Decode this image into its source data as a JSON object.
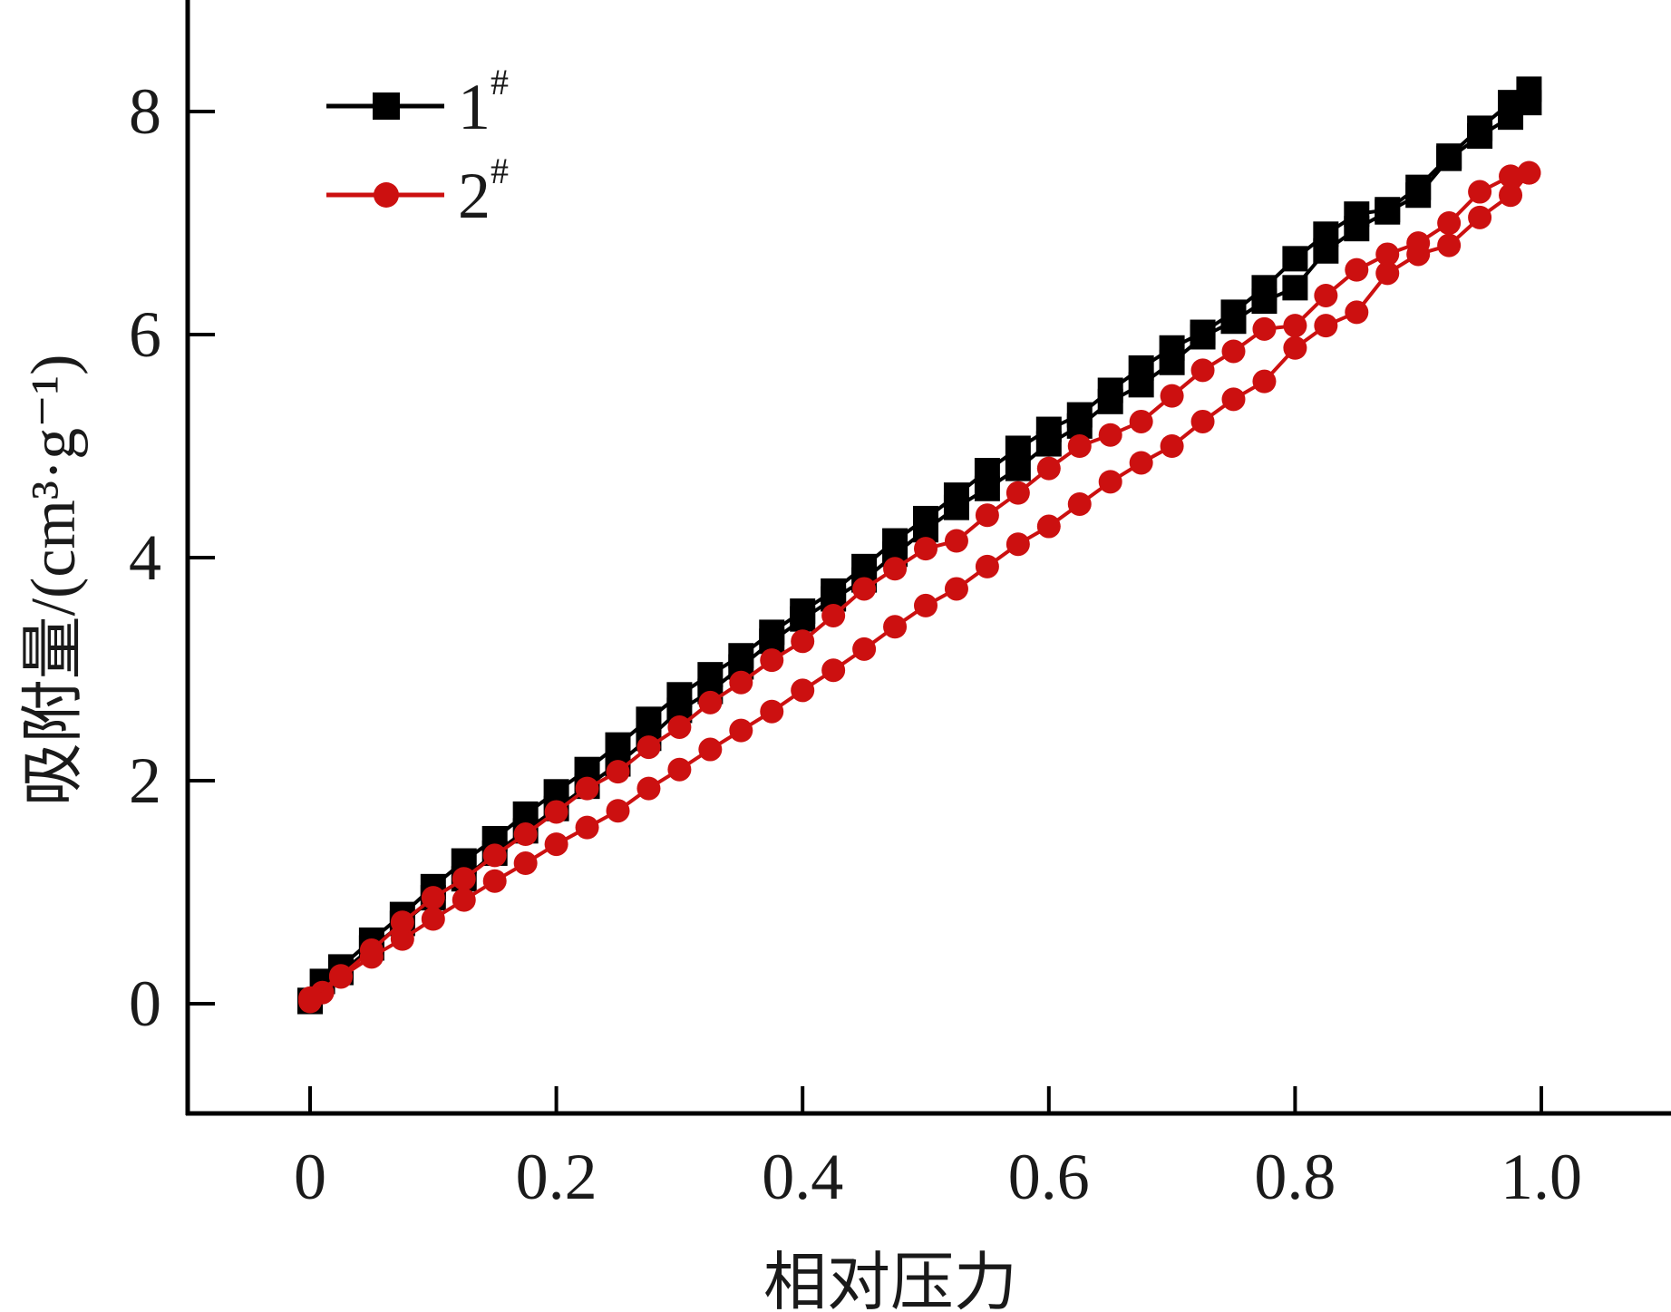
{
  "chart_data": {
    "type": "line",
    "xlabel": "相对压力",
    "ylabel": "吸附量/(cm³·g⁻¹)",
    "xlim": [
      -0.1,
      1.1
    ],
    "ylim": [
      -1,
      9
    ],
    "x_ticks": [
      0,
      0.2,
      0.4,
      0.6,
      0.8,
      1.0
    ],
    "x_tick_labels": [
      "0",
      "0.2",
      "0.4",
      "0.6",
      "0.8",
      "1.0"
    ],
    "y_ticks": [
      0,
      2,
      4,
      6,
      8
    ],
    "y_tick_labels": [
      "0",
      "2",
      "4",
      "6",
      "8"
    ],
    "grid": false,
    "legend_position": "top-left",
    "series": [
      {
        "name": "1#",
        "name_main": "1",
        "name_sup": "#",
        "marker": "square",
        "color": "#000000",
        "adsorption": [
          [
            0.0,
            0.03
          ],
          [
            0.01,
            0.2
          ],
          [
            0.025,
            0.33
          ],
          [
            0.05,
            0.57
          ],
          [
            0.075,
            0.8
          ],
          [
            0.1,
            1.05
          ],
          [
            0.125,
            1.28
          ],
          [
            0.15,
            1.48
          ],
          [
            0.175,
            1.7
          ],
          [
            0.2,
            1.9
          ],
          [
            0.225,
            2.1
          ],
          [
            0.25,
            2.32
          ],
          [
            0.275,
            2.55
          ],
          [
            0.3,
            2.77
          ],
          [
            0.325,
            2.95
          ],
          [
            0.35,
            3.12
          ],
          [
            0.375,
            3.33
          ],
          [
            0.4,
            3.52
          ],
          [
            0.425,
            3.7
          ],
          [
            0.45,
            3.92
          ],
          [
            0.475,
            4.15
          ],
          [
            0.5,
            4.35
          ],
          [
            0.525,
            4.56
          ],
          [
            0.55,
            4.78
          ],
          [
            0.575,
            4.98
          ],
          [
            0.6,
            5.15
          ],
          [
            0.625,
            5.28
          ],
          [
            0.65,
            5.5
          ],
          [
            0.675,
            5.7
          ],
          [
            0.7,
            5.88
          ],
          [
            0.725,
            6.02
          ],
          [
            0.75,
            6.2
          ],
          [
            0.775,
            6.42
          ],
          [
            0.8,
            6.68
          ],
          [
            0.825,
            6.9
          ],
          [
            0.85,
            7.08
          ],
          [
            0.875,
            7.12
          ],
          [
            0.9,
            7.32
          ],
          [
            0.925,
            7.6
          ],
          [
            0.95,
            7.85
          ],
          [
            0.975,
            8.08
          ],
          [
            0.99,
            8.2
          ]
        ],
        "desorption": [
          [
            0.99,
            8.08
          ],
          [
            0.975,
            7.95
          ],
          [
            0.95,
            7.78
          ],
          [
            0.925,
            7.58
          ],
          [
            0.9,
            7.25
          ],
          [
            0.875,
            7.1
          ],
          [
            0.85,
            6.95
          ],
          [
            0.825,
            6.75
          ],
          [
            0.8,
            6.42
          ],
          [
            0.775,
            6.3
          ],
          [
            0.75,
            6.12
          ],
          [
            0.725,
            5.98
          ],
          [
            0.7,
            5.75
          ],
          [
            0.675,
            5.55
          ],
          [
            0.65,
            5.4
          ],
          [
            0.625,
            5.18
          ],
          [
            0.6,
            5.02
          ],
          [
            0.575,
            4.8
          ],
          [
            0.55,
            4.62
          ],
          [
            0.525,
            4.45
          ],
          [
            0.5,
            4.25
          ],
          [
            0.475,
            4.03
          ],
          [
            0.45,
            3.8
          ],
          [
            0.425,
            3.63
          ],
          [
            0.4,
            3.45
          ],
          [
            0.375,
            3.25
          ],
          [
            0.35,
            3.02
          ],
          [
            0.325,
            2.8
          ],
          [
            0.3,
            2.63
          ],
          [
            0.275,
            2.38
          ],
          [
            0.25,
            2.15
          ],
          [
            0.225,
            1.95
          ],
          [
            0.2,
            1.75
          ],
          [
            0.175,
            1.55
          ],
          [
            0.15,
            1.35
          ],
          [
            0.125,
            1.12
          ],
          [
            0.1,
            0.95
          ],
          [
            0.075,
            0.72
          ],
          [
            0.05,
            0.5
          ],
          [
            0.025,
            0.28
          ],
          [
            0.0,
            0.02
          ]
        ]
      },
      {
        "name": "2#",
        "name_main": "2",
        "name_sup": "#",
        "marker": "circle",
        "color": "#cc1010",
        "adsorption": [
          [
            0.0,
            0.02
          ],
          [
            0.01,
            0.1
          ],
          [
            0.025,
            0.24
          ],
          [
            0.05,
            0.42
          ],
          [
            0.075,
            0.58
          ],
          [
            0.1,
            0.76
          ],
          [
            0.125,
            0.93
          ],
          [
            0.15,
            1.1
          ],
          [
            0.175,
            1.26
          ],
          [
            0.2,
            1.43
          ],
          [
            0.225,
            1.58
          ],
          [
            0.25,
            1.73
          ],
          [
            0.275,
            1.93
          ],
          [
            0.3,
            2.1
          ],
          [
            0.325,
            2.28
          ],
          [
            0.35,
            2.45
          ],
          [
            0.375,
            2.62
          ],
          [
            0.4,
            2.81
          ],
          [
            0.425,
            2.99
          ],
          [
            0.45,
            3.18
          ],
          [
            0.475,
            3.38
          ],
          [
            0.5,
            3.57
          ],
          [
            0.525,
            3.72
          ],
          [
            0.55,
            3.92
          ],
          [
            0.575,
            4.12
          ],
          [
            0.6,
            4.28
          ],
          [
            0.625,
            4.48
          ],
          [
            0.65,
            4.68
          ],
          [
            0.675,
            4.85
          ],
          [
            0.7,
            5.0
          ],
          [
            0.725,
            5.22
          ],
          [
            0.75,
            5.42
          ],
          [
            0.775,
            5.58
          ],
          [
            0.8,
            5.88
          ],
          [
            0.825,
            6.08
          ],
          [
            0.85,
            6.2
          ],
          [
            0.875,
            6.55
          ],
          [
            0.9,
            6.72
          ],
          [
            0.925,
            6.8
          ],
          [
            0.95,
            7.05
          ],
          [
            0.975,
            7.25
          ],
          [
            0.99,
            7.45
          ]
        ],
        "desorption": [
          [
            0.99,
            7.45
          ],
          [
            0.975,
            7.42
          ],
          [
            0.95,
            7.28
          ],
          [
            0.925,
            7.0
          ],
          [
            0.9,
            6.82
          ],
          [
            0.875,
            6.72
          ],
          [
            0.85,
            6.58
          ],
          [
            0.825,
            6.35
          ],
          [
            0.8,
            6.08
          ],
          [
            0.775,
            6.05
          ],
          [
            0.75,
            5.85
          ],
          [
            0.725,
            5.68
          ],
          [
            0.7,
            5.45
          ],
          [
            0.675,
            5.22
          ],
          [
            0.65,
            5.1
          ],
          [
            0.625,
            5.0
          ],
          [
            0.6,
            4.8
          ],
          [
            0.575,
            4.58
          ],
          [
            0.55,
            4.38
          ],
          [
            0.525,
            4.15
          ],
          [
            0.5,
            4.08
          ],
          [
            0.475,
            3.9
          ],
          [
            0.45,
            3.72
          ],
          [
            0.425,
            3.48
          ],
          [
            0.4,
            3.25
          ],
          [
            0.375,
            3.08
          ],
          [
            0.35,
            2.88
          ],
          [
            0.325,
            2.7
          ],
          [
            0.3,
            2.48
          ],
          [
            0.275,
            2.3
          ],
          [
            0.25,
            2.08
          ],
          [
            0.225,
            1.93
          ],
          [
            0.2,
            1.72
          ],
          [
            0.175,
            1.52
          ],
          [
            0.15,
            1.33
          ],
          [
            0.125,
            1.12
          ],
          [
            0.1,
            0.95
          ],
          [
            0.075,
            0.73
          ],
          [
            0.05,
            0.48
          ],
          [
            0.025,
            0.25
          ],
          [
            0.0,
            0.05
          ]
        ]
      }
    ]
  }
}
